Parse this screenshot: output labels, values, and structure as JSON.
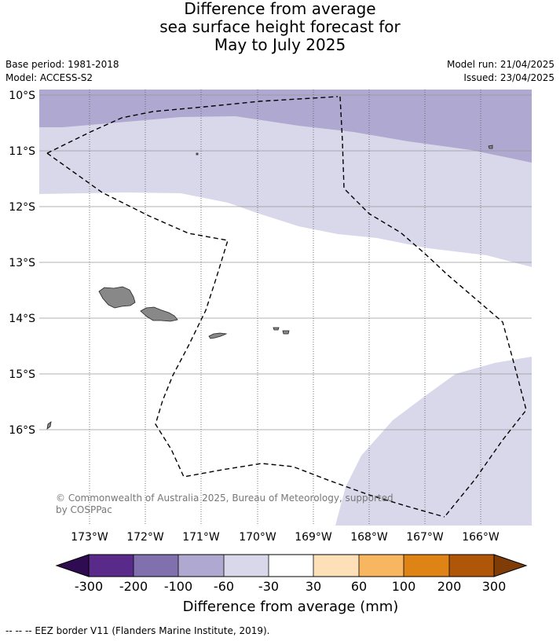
{
  "header": {
    "title_lines": [
      "Difference from average",
      "sea surface height forecast for",
      "May to July 2025"
    ],
    "base_period": "Base period: 1981-2018",
    "model": "Model: ACCESS-S2",
    "model_run": "Model run: 21/04/2025",
    "issued": "Issued: 23/04/2025"
  },
  "map": {
    "lat_labels": [
      "10°S",
      "11°S",
      "12°S",
      "13°S",
      "14°S",
      "15°S",
      "16°S"
    ],
    "lon_labels": [
      "173°W",
      "172°W",
      "171°W",
      "170°W",
      "169°W",
      "168°W",
      "167°W",
      "166°W"
    ],
    "copyright_lines": [
      "© Commonwealth of Australia 2025, Bureau of Meteorology, supported",
      "by COSPPac"
    ]
  },
  "colorbar": {
    "ticks": [
      "-300",
      "-200",
      "-100",
      "-60",
      "-30",
      "30",
      "60",
      "100",
      "200",
      "300"
    ],
    "colors": [
      "#2f0c52",
      "#5a2a8a",
      "#8070ae",
      "#afa9d1",
      "#d8d8ea",
      "#ffffff",
      "#fde0b8",
      "#f8b660",
      "#e08316",
      "#b05608",
      "#7f3c07"
    ],
    "label": "Difference from average (mm)"
  },
  "legend": {
    "eez": "--  --  -- EEZ border V11 (Flanders Marine Institute, 2019)."
  }
}
